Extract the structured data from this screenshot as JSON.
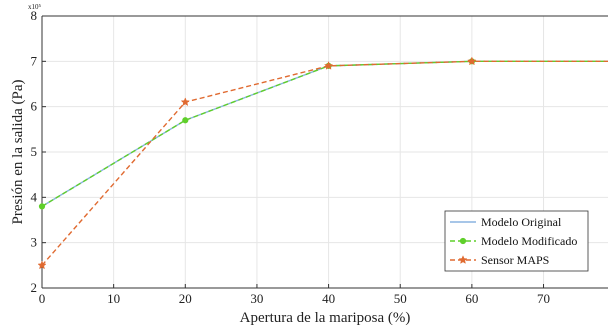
{
  "chart_data": {
    "type": "line",
    "title": "",
    "xlabel": "Apertura de la mariposa (%)",
    "ylabel": "Presión en la salida (Pa)",
    "y_exponent_label": "x10⁵",
    "xlim": [
      0,
      79
    ],
    "ylim": [
      2,
      8
    ],
    "xticks": [
      "0",
      "10",
      "20",
      "30",
      "40",
      "50",
      "60",
      "70"
    ],
    "xtick_values": [
      0,
      10,
      20,
      30,
      40,
      50,
      60,
      70
    ],
    "yticks": [
      "2",
      "3",
      "4",
      "5",
      "6",
      "7",
      "8"
    ],
    "ytick_values": [
      2,
      3,
      4,
      5,
      6,
      7,
      8
    ],
    "grid": true,
    "legend_position": "bottom-right",
    "series": [
      {
        "name": "Modelo Original",
        "x": [
          0,
          20,
          40,
          60,
          79
        ],
        "values": [
          3.8,
          5.7,
          6.9,
          7.0,
          7.0
        ],
        "color": "#8ab4e0",
        "style": "solid",
        "marker": "none"
      },
      {
        "name": "Modelo Modificado",
        "x": [
          0,
          20,
          40,
          60,
          79
        ],
        "values": [
          3.8,
          5.7,
          6.9,
          7.0,
          7.0
        ],
        "color": "#5fcf2a",
        "style": "dashed",
        "marker": "dot"
      },
      {
        "name": "Sensor MAPS",
        "x": [
          0,
          20,
          40,
          60,
          79
        ],
        "values": [
          2.5,
          6.1,
          6.9,
          7.0,
          7.0
        ],
        "color": "#e06a30",
        "style": "dashed",
        "marker": "star"
      }
    ]
  }
}
